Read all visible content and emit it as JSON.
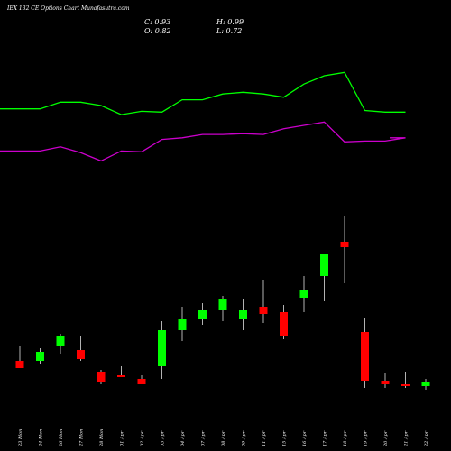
{
  "header": {
    "title": "IEX 132 CE Options Chart Munafasutra.com",
    "close_label": "C: 0.93",
    "high_label": "H: 0.99",
    "open_label": "O: 0.82",
    "low_label": "L: 0.72"
  },
  "colors": {
    "background": "#000000",
    "up": "#00ff00",
    "down": "#ff0000",
    "line_upper": "#00ff00",
    "line_lower": "#cc00cc",
    "text": "#ffffff"
  },
  "chart_data": {
    "type": "candlestick",
    "categories": [
      "23 Mon",
      "24 Mon",
      "26 Mon",
      "27 Mon",
      "28 Mon",
      "01 Apr",
      "02 Apr",
      "03 Apr",
      "04 Apr",
      "07 Apr",
      "08 Apr",
      "09 Apr",
      "11 Apr",
      "15 Apr",
      "16 Apr",
      "17 Apr",
      "18 Apr",
      "19 Apr",
      "20 Apr",
      "21 Apr",
      "22 Apr"
    ],
    "series": [
      {
        "kind": "ohlc",
        "open": [
          0.3,
          0.3,
          0.38,
          0.36,
          0.24,
          0.22,
          0.2,
          0.27,
          0.47,
          0.53,
          0.58,
          0.53,
          0.6,
          0.57,
          0.65,
          0.77,
          0.96,
          0.46,
          0.19,
          0.17,
          0.16
        ],
        "high": [
          0.38,
          0.37,
          0.45,
          0.44,
          0.25,
          0.27,
          0.22,
          0.52,
          0.6,
          0.62,
          0.66,
          0.64,
          0.75,
          0.61,
          0.77,
          0.89,
          1.1,
          0.54,
          0.23,
          0.24,
          0.2
        ],
        "low": [
          0.26,
          0.28,
          0.34,
          0.3,
          0.17,
          0.21,
          0.17,
          0.2,
          0.41,
          0.5,
          0.52,
          0.47,
          0.51,
          0.42,
          0.57,
          0.63,
          0.73,
          0.15,
          0.15,
          0.15,
          0.14
        ],
        "close": [
          0.26,
          0.35,
          0.44,
          0.31,
          0.18,
          0.21,
          0.17,
          0.47,
          0.53,
          0.58,
          0.64,
          0.58,
          0.56,
          0.44,
          0.69,
          0.89,
          0.93,
          0.19,
          0.17,
          0.16,
          0.18
        ]
      },
      {
        "kind": "line",
        "color": "#00ff00",
        "values": [
          152,
          152,
          160,
          160,
          156,
          145,
          149,
          148,
          163,
          163,
          170,
          172,
          170,
          166,
          182,
          192,
          196,
          150,
          148,
          148,
          148
        ]
      },
      {
        "kind": "line",
        "color": "#cc00cc",
        "values": [
          101,
          101,
          106,
          99,
          89,
          101,
          100,
          115,
          117,
          121,
          121,
          122,
          121,
          128,
          132,
          136,
          112,
          113,
          113,
          117,
          117
        ]
      }
    ],
    "candle_ylim": [
      0.0,
      1.15
    ],
    "line_ylim": [
      0,
      240
    ],
    "grid": false,
    "legend": "none"
  }
}
